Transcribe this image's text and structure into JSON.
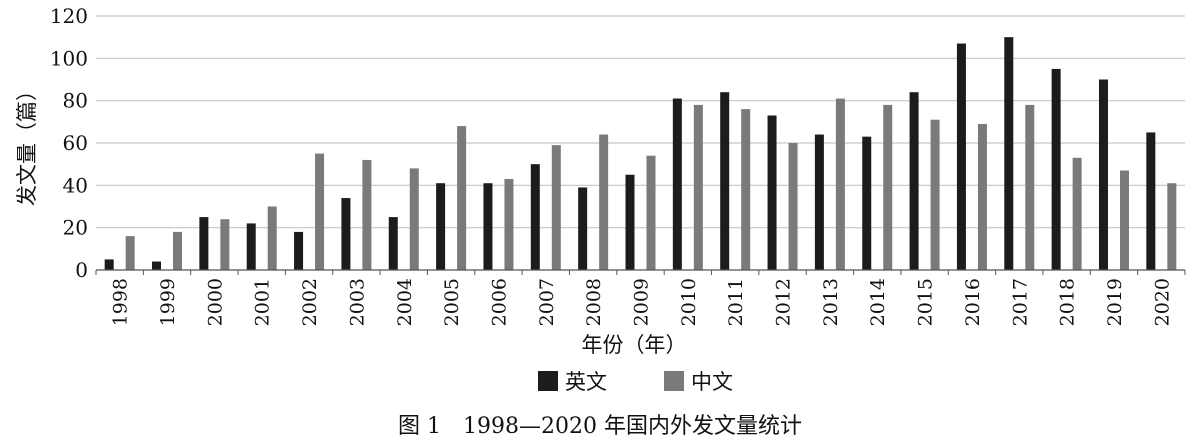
{
  "chart_data": {
    "type": "bar",
    "caption": "图 1　1998—2020 年国内外发文量统计",
    "xlabel": "年份（年）",
    "ylabel": "发文量（篇）",
    "ylim": [
      0,
      120
    ],
    "yticks": [
      0,
      20,
      40,
      60,
      80,
      100,
      120
    ],
    "grid": true,
    "legend_position": "bottom",
    "categories": [
      "1998",
      "1999",
      "2000",
      "2001",
      "2002",
      "2003",
      "2004",
      "2005",
      "2006",
      "2007",
      "2008",
      "2009",
      "2010",
      "2011",
      "2012",
      "2013",
      "2014",
      "2015",
      "2016",
      "2017",
      "2018",
      "2019",
      "2020"
    ],
    "series": [
      {
        "name": "英文",
        "color": "#1c1c1c",
        "values": [
          5,
          4,
          25,
          22,
          18,
          34,
          25,
          41,
          41,
          50,
          39,
          45,
          81,
          84,
          73,
          64,
          63,
          84,
          107,
          110,
          95,
          90,
          65
        ]
      },
      {
        "name": "中文",
        "color": "#7a7a7a",
        "values": [
          16,
          18,
          24,
          30,
          55,
          52,
          48,
          68,
          43,
          59,
          64,
          54,
          78,
          76,
          60,
          81,
          78,
          71,
          69,
          78,
          53,
          47,
          41
        ]
      }
    ]
  }
}
